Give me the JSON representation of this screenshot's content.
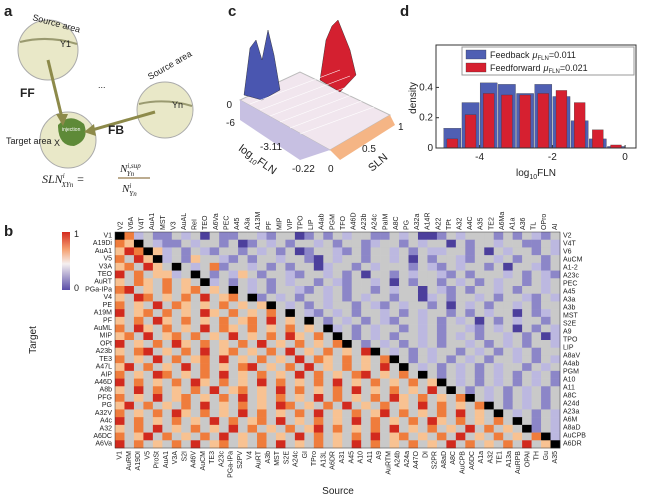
{
  "panels": {
    "a": {
      "letter": "a",
      "source_1": "Source area",
      "y1": "Y1",
      "ellipsis": "...",
      "source_n": "Source area",
      "yn": "Yn",
      "ff": "FF",
      "fb": "FB",
      "target": "Target area",
      "x": "X",
      "injection": "injection",
      "formula": {
        "lhs": "SLN",
        "lhs_sup": "i",
        "lhs_sub": "XYn",
        "eq": "=",
        "num": "N",
        "num_sup": "i,sup",
        "num_sub": "Yn",
        "den": "N",
        "den_sup": "i",
        "den_sub": "Yn"
      }
    },
    "c": {
      "letter": "c",
      "z_tick": "0",
      "fln_ticks": [
        "-6",
        "-3.11",
        "-0.22"
      ],
      "sln_ticks": [
        "0",
        "0.5",
        "1"
      ],
      "fln_label": [
        "log",
        "10",
        "FLN"
      ],
      "sln_label": "SLN"
    },
    "b": {
      "letter": "b",
      "colorbar_top": "1",
      "colorbar_bottom": "0",
      "y_label": "Target",
      "x_label": "Source",
      "rows_left": [
        "V1",
        "A19Di",
        "AuA1",
        "V5",
        "V3A",
        "TEO",
        "AuRT",
        "PGa-IPa",
        "V4",
        "PE",
        "A19M",
        "PF",
        "AuML",
        "MIP",
        "OPt",
        "A23b",
        "TE3",
        "A47L",
        "AIP",
        "A46D",
        "A8b",
        "PFG",
        "PG",
        "A32V",
        "A4c",
        "A32",
        "A6DC",
        "A6Va"
      ],
      "rows_right": [
        "V2",
        "V4T",
        "V6",
        "AuCM",
        "A1-2",
        "A23c",
        "PEC",
        "A45",
        "A3a",
        "A3b",
        "MST",
        "S2E",
        "A9",
        "TPO",
        "LIP",
        "A8aV",
        "A4ab",
        "PGM",
        "A10",
        "A11",
        "A8C",
        "A24d",
        "A23a",
        "A6M",
        "A8aD",
        "AuCPB",
        "A6DR"
      ],
      "cols_top": [
        "V2",
        "V6A",
        "V4T",
        "AuA1",
        "MST",
        "V3",
        "AuAL",
        "ReI",
        "TEO",
        "A6Va",
        "PEC",
        "A45",
        "A3a",
        "A13M",
        "PF",
        "MIP",
        "VIP",
        "TPO",
        "LIP",
        "A4ab",
        "PGM",
        "TFO",
        "A46D",
        "A23b",
        "A24c",
        "PaIM",
        "A8C",
        "PG",
        "A32a",
        "A14R",
        "A22",
        "TPt",
        "A32",
        "A4C",
        "A35",
        "TE2",
        "A6Ma",
        "A1a",
        "A36",
        "TL",
        "OPro",
        "AI"
      ],
      "cols_bottom": [
        "V1",
        "AuRM",
        "A19DI",
        "V5",
        "ProSt",
        "AuA1",
        "V3A",
        "S2I",
        "A46V",
        "AuCM",
        "TE3",
        "A23c",
        "PGa-IPa",
        "S2PV",
        "V4",
        "AuRT",
        "A3b",
        "MST",
        "S2E",
        "A24c",
        "GI",
        "TPro",
        "A13L",
        "A6DR",
        "A31",
        "A45",
        "A10",
        "A11",
        "A9",
        "AuRTM",
        "A24b",
        "A24a",
        "A47O",
        "DI",
        "S2PR",
        "A8aD",
        "A8C",
        "AuCPB",
        "A6DC",
        "A1a",
        "A32",
        "TE1",
        "A13a",
        "AuRPB",
        "OPAI",
        "TH",
        "Gu",
        "A35"
      ],
      "cells": [
        "k2a.bb.a.c.bb..ab..cb.b.a..bb.a.ccb.a...b.b.ab.",
        "21k.abb.a..b.cb.a.b..a.b..ba..b.a..c.b..a..bb.a",
        "132k1a.b.ab..b.a.b.cb..ab.b..a.b.aa..b.c.a..b.a",
        "2.31ka.b1..ab.b..a..bc.a..b..a.c.b..ab..a.b..b.",
        "12.31.k.a.2b..a.b.b..ca..b.a...b.ab.a..b.c..ab.",
        "3.2.11a.k.b.a1.b..ab..a.b.c..b.a..ab.b...a.b.ab",
        "1.21.2.1.ka.b.a.b.a..b.ab..a.c.b..b.a.b.a..b.a.",
        "23.1.2.12.1.k.a.b..ab.a.b..b.a..c.ab.b..a.b..a.",
        "1.32.1.2.3.12.kb.a.b..a.b.a..b..ca.b..a.b..ab.a",
        "2.1.3.21.1.2.1.1k.a.b.a..b.ab.a..b.c.a.b..a.b..",
        "3.12.2.1.31.2.1.2.k.ab.a.b..a.b.a..b.b.a..c.ba.",
        "1.2.31.2.1.2.12.3.1.k.b.a.b.ab..a.b.a.c.b.a..b.",
        "2.31.2.1.3.21.2.1.2.1.ka.b.a..b.a.b..ab.a.c.b.a",
        "12.3.12.2.1.3.1.2.31.2.k.b.a.b..a.b.a.b..a.b.ca",
        "3.1.2.31.2.1.2.3.1.2.1.2k.b.a.b.a.b..a.b.a.b..a",
        "1.23.1.2.3.12.1.2.3.1.2.1.3k.a.b.a..b.a.b.a.b..",
        "2.1.3.2.12.3.1.2.1.3.21.2.1.2k.b.a.b.a.b..a.b.a",
        "13.2.1.3.2.1.23.1.2.3.1.2.1.3.k.a.b.a.b.a..b.a.",
        "2.1.32.1.2.3.1.2.1.3.2.1.23.1.2.k.b.a.b.a.b.a.b",
        "3.2.1.2.31.2.1.3.2.1.2.3.1.2.1.2.1k.a.b.a.b.a.b",
        "1.3.2.1.2.3.12.1.3.2.1.2.3.1.2.1.3.k.b.a.b.a.b.",
        "2.1.3.12.1.2.3.1.2.1.3.2.1.2.31.2.1.2k.a.b.a.b.",
        "13.2.1.2.3.1.2.1.32.1.2.3.1.2.1.3.2.1.2k.b.a.b.",
        "2.1.2.31.2.1.3.2.1.2.3.1.2.13.2.1.2.3.1.k.a.b.a",
        "3.2.1.2.1.3.2.12.3.1.2.1.3.2.1.2.31.2.1.2.k.b.a",
        "1.2.3.1.2.1.3.2.1.2.13.2.1.2.3.1.2.1.3.2.1.kb.a",
        "2.13.2.1.2.3.1.2.1.3.2.1.2.3.12.1.2.3.1.2.1.2ka",
        "3.2.1.2.3.12.1.2.3.1.2.1.3.2.1.2.1.3.2.1.2.3.1k"
      ]
    }
  },
  "chart_data": {
    "type": "histogram",
    "letter": "d",
    "y_label": "density",
    "x_label": [
      "log",
      "10",
      "FLN"
    ],
    "bins": [
      -5,
      -4.5,
      -4,
      -3.5,
      -3,
      -2.5,
      -2,
      -1.5,
      -1,
      -0.5,
      0
    ],
    "series": [
      {
        "name": "Feedback",
        "stat": [
          "μ",
          "FLN",
          "=0.011"
        ],
        "color": "#4f5fb3",
        "values": [
          0.13,
          0.3,
          0.43,
          0.42,
          0.36,
          0.42,
          0.34,
          0.18,
          0.06,
          0.01
        ]
      },
      {
        "name": "Feedforward",
        "stat": [
          "μ",
          "FLN",
          "=0.021"
        ],
        "color": "#d62030",
        "values": [
          0.06,
          0.22,
          0.36,
          0.35,
          0.35,
          0.36,
          0.38,
          0.3,
          0.12,
          0.02
        ]
      }
    ],
    "xlim": [
      -5.2,
      0.3
    ],
    "ylim": [
      0,
      0.68
    ],
    "xticks": [
      -4,
      -2,
      0
    ],
    "yticks": [
      0,
      0.2,
      0.4
    ]
  }
}
